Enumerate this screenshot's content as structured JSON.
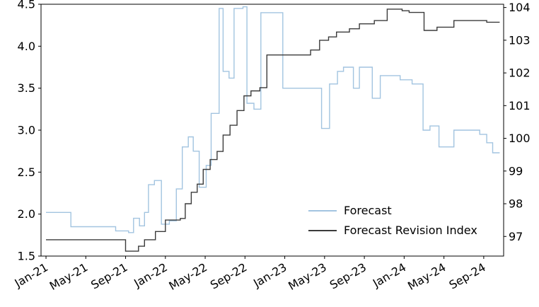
{
  "chart_data": {
    "type": "line",
    "step_interpolation": "step-after",
    "title": "",
    "xlabel": "",
    "ylabel_left": "",
    "ylabel_right": "",
    "grid": false,
    "x_unit_note": "months since Jan-2021",
    "xlim": [
      -0.5,
      46
    ],
    "x_ticks": [
      {
        "x": 0,
        "label": "Jan-21"
      },
      {
        "x": 4,
        "label": "May-21"
      },
      {
        "x": 8,
        "label": "Sep-21"
      },
      {
        "x": 12,
        "label": "Jan-22"
      },
      {
        "x": 16,
        "label": "May-22"
      },
      {
        "x": 20,
        "label": "Sep-22"
      },
      {
        "x": 24,
        "label": "Jan-23"
      },
      {
        "x": 28,
        "label": "May-23"
      },
      {
        "x": 32,
        "label": "Sep-23"
      },
      {
        "x": 36,
        "label": "Jan-24"
      },
      {
        "x": 40,
        "label": "May-24"
      },
      {
        "x": 44,
        "label": "Sep-24"
      }
    ],
    "left_axis": {
      "lim": [
        1.5,
        4.5
      ],
      "ticks": [
        {
          "v": 1.5,
          "label": "1.5"
        },
        {
          "v": 2.0,
          "label": "2.0"
        },
        {
          "v": 2.5,
          "label": "2.5"
        },
        {
          "v": 3.0,
          "label": "3.0"
        },
        {
          "v": 3.5,
          "label": "3.5"
        },
        {
          "v": 4.0,
          "label": "4.0"
        },
        {
          "v": 4.5,
          "label": "4.5"
        }
      ]
    },
    "right_axis": {
      "lim": [
        96.4,
        104.1
      ],
      "ticks": [
        {
          "v": 97,
          "label": "97"
        },
        {
          "v": 98,
          "label": "98"
        },
        {
          "v": 99,
          "label": "99"
        },
        {
          "v": 100,
          "label": "100"
        },
        {
          "v": 101,
          "label": "101"
        },
        {
          "v": 102,
          "label": "102"
        },
        {
          "v": 103,
          "label": "103"
        },
        {
          "v": 104,
          "label": "104"
        }
      ]
    },
    "legend": {
      "position": "lower-right",
      "frame": false
    },
    "colors": {
      "axis": "#000000",
      "text": "#000000"
    },
    "series": [
      {
        "name": "Forecast",
        "axis": "left",
        "color": "#a2c4e0",
        "line_width": 1.4,
        "points": [
          [
            0,
            2.02
          ],
          [
            2.5,
            1.85
          ],
          [
            7.0,
            1.8
          ],
          [
            8.3,
            1.78
          ],
          [
            8.8,
            1.95
          ],
          [
            9.4,
            1.86
          ],
          [
            9.9,
            2.02
          ],
          [
            10.3,
            2.35
          ],
          [
            10.9,
            2.4
          ],
          [
            11.6,
            1.88
          ],
          [
            12.4,
            1.92
          ],
          [
            13.1,
            2.3
          ],
          [
            13.7,
            2.8
          ],
          [
            14.3,
            2.92
          ],
          [
            14.8,
            2.75
          ],
          [
            15.4,
            2.32
          ],
          [
            16.1,
            2.58
          ],
          [
            16.6,
            3.2
          ],
          [
            17.4,
            4.45
          ],
          [
            17.8,
            3.7
          ],
          [
            18.4,
            3.62
          ],
          [
            18.9,
            4.45
          ],
          [
            19.8,
            4.47
          ],
          [
            20.2,
            3.32
          ],
          [
            20.9,
            3.25
          ],
          [
            21.6,
            4.4
          ],
          [
            23.8,
            3.5
          ],
          [
            27.7,
            3.02
          ],
          [
            28.5,
            3.55
          ],
          [
            29.3,
            3.7
          ],
          [
            29.9,
            3.75
          ],
          [
            30.9,
            3.5
          ],
          [
            31.5,
            3.75
          ],
          [
            32.8,
            3.38
          ],
          [
            33.6,
            3.65
          ],
          [
            35.6,
            3.6
          ],
          [
            36.8,
            3.55
          ],
          [
            37.9,
            3.0
          ],
          [
            38.6,
            3.05
          ],
          [
            39.5,
            2.8
          ],
          [
            41.0,
            3.0
          ],
          [
            43.6,
            2.95
          ],
          [
            44.3,
            2.85
          ],
          [
            44.9,
            2.73
          ],
          [
            45.6,
            2.73
          ]
        ]
      },
      {
        "name": "Forecast Revision Index",
        "axis": "right",
        "color": "#3b3b3b",
        "line_width": 1.4,
        "points": [
          [
            0,
            96.9
          ],
          [
            8.0,
            96.55
          ],
          [
            9.3,
            96.7
          ],
          [
            9.9,
            96.9
          ],
          [
            11.0,
            97.15
          ],
          [
            12.0,
            97.5
          ],
          [
            13.5,
            97.55
          ],
          [
            14.0,
            98.0
          ],
          [
            14.6,
            98.35
          ],
          [
            15.2,
            98.6
          ],
          [
            15.8,
            99.05
          ],
          [
            16.5,
            99.35
          ],
          [
            17.2,
            99.6
          ],
          [
            17.8,
            100.1
          ],
          [
            18.5,
            100.4
          ],
          [
            19.2,
            100.85
          ],
          [
            19.9,
            101.3
          ],
          [
            20.6,
            101.45
          ],
          [
            21.5,
            101.55
          ],
          [
            22.2,
            102.55
          ],
          [
            26.6,
            102.7
          ],
          [
            27.5,
            103.0
          ],
          [
            28.4,
            103.1
          ],
          [
            29.2,
            103.25
          ],
          [
            30.5,
            103.35
          ],
          [
            31.5,
            103.5
          ],
          [
            33.0,
            103.6
          ],
          [
            34.3,
            103.95
          ],
          [
            35.8,
            103.9
          ],
          [
            36.5,
            103.85
          ],
          [
            38.0,
            103.3
          ],
          [
            39.3,
            103.4
          ],
          [
            41.0,
            103.6
          ],
          [
            44.3,
            103.55
          ],
          [
            45.6,
            103.55
          ]
        ]
      }
    ]
  }
}
